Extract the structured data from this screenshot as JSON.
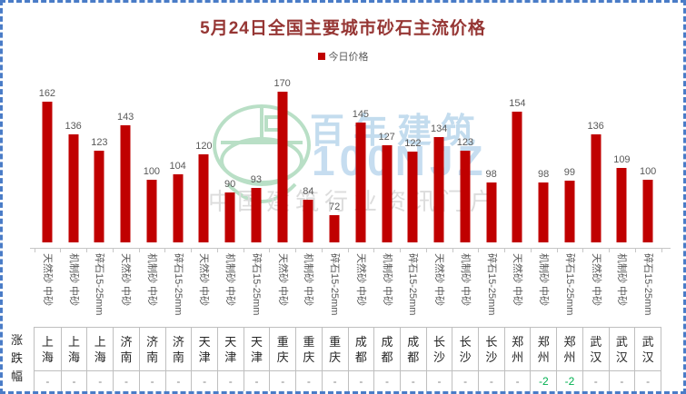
{
  "chart_data": {
    "type": "bar",
    "title": "5月24日全国主要城市砂石主流价格",
    "legend_label": "今日价格",
    "legend_position": "top-center",
    "bar_color": "#c00000",
    "title_color": "#963634",
    "grid": false,
    "y_axis_visible": false,
    "ylim": [
      50,
      180
    ],
    "categories": [
      "天然砂 中砂",
      "机制砂 中砂",
      "碎石15-25mm",
      "天然砂 中砂",
      "机制砂 中砂",
      "碎石15-25mm",
      "天然砂 中砂",
      "机制砂 中砂",
      "碎石15-25mm",
      "天然砂 中砂",
      "机制砂 中砂",
      "碎石15-25mm",
      "天然砂 中砂",
      "机制砂 中砂",
      "碎石15-25mm",
      "天然砂 中砂",
      "机制砂 中砂",
      "碎石15-25mm",
      "天然砂 中砂",
      "机制砂 中砂",
      "碎石15-25mm",
      "天然砂 中砂",
      "机制砂 中砂",
      "碎石15-25mm"
    ],
    "series": [
      {
        "name": "今日价格",
        "values": [
          162,
          136,
          123,
          143,
          100,
          104,
          120,
          90,
          93,
          170,
          84,
          72,
          145,
          127,
          122,
          134,
          123,
          98,
          154,
          98,
          99,
          136,
          109,
          100
        ]
      }
    ]
  },
  "table": {
    "row_header": "涨跌幅",
    "cities": [
      "上海",
      "上海",
      "上海",
      "济南",
      "济南",
      "济南",
      "天津",
      "天津",
      "天津",
      "重庆",
      "重庆",
      "重庆",
      "成都",
      "成都",
      "成都",
      "长沙",
      "长沙",
      "长沙",
      "郑州",
      "郑州",
      "郑州",
      "武汉",
      "武汉",
      "武汉"
    ],
    "changes": [
      "-",
      "-",
      "-",
      "-",
      "-",
      "-",
      "-",
      "-",
      "-",
      "-",
      "-",
      "-",
      "-",
      "-",
      "-",
      "-",
      "-",
      "-",
      "-",
      "-2",
      "-2",
      "-",
      "-",
      "-"
    ],
    "change_negative_color": "#00b050"
  },
  "watermark": {
    "brand": "百年建筑",
    "brand_en": "100NJZ",
    "tagline": "中国建筑行业资讯门户"
  }
}
